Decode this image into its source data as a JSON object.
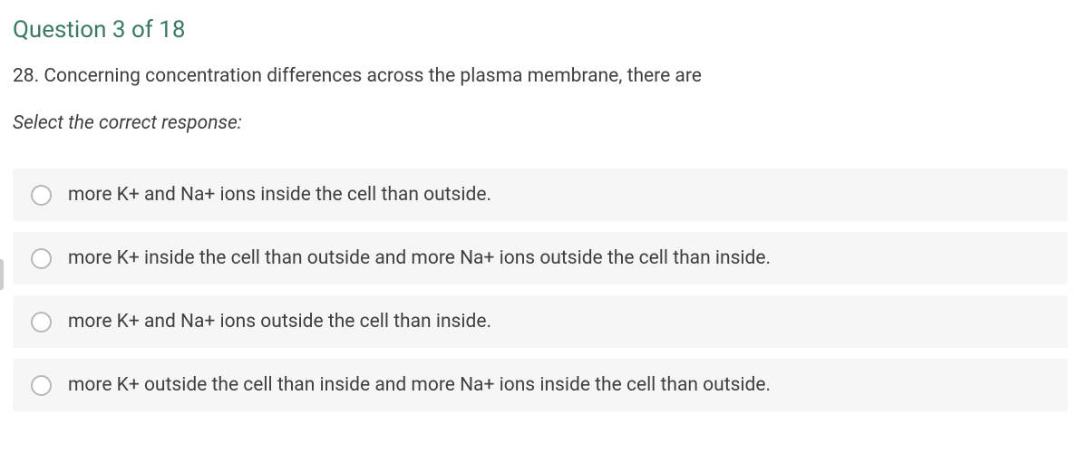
{
  "header": {
    "label": "Question 3 of 18",
    "color": "#3a7a5e",
    "fontsize": 26
  },
  "question": {
    "number": "28.",
    "text": "28. Concerning concentration differences across the plasma membrane, there are",
    "fontsize": 21,
    "color": "#3f3f3f"
  },
  "instruction": {
    "text": "Select the correct response:",
    "italic": true,
    "fontsize": 21
  },
  "options": [
    {
      "label": "more K+ and Na+ ions inside the cell than outside.",
      "selected": false
    },
    {
      "label": "more K+ inside the cell than outside and more Na+ ions outside the cell than inside.",
      "selected": false
    },
    {
      "label": "more K+ and Na+ ions outside the cell than inside.",
      "selected": false
    },
    {
      "label": "more K+ outside the cell than inside and more Na+ ions inside the cell than outside.",
      "selected": false
    }
  ],
  "styles": {
    "option_background": "#f6f6f6",
    "radio_border": "#b8b8b8",
    "page_background": "#ffffff"
  }
}
